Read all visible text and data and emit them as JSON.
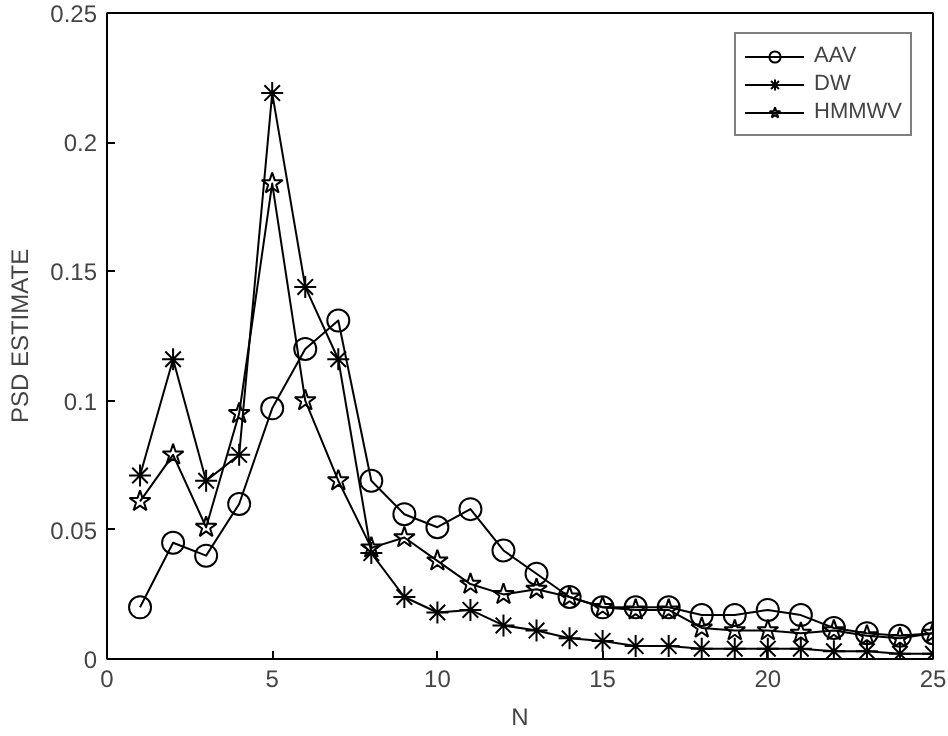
{
  "chart_data": {
    "type": "line",
    "xlabel": "N",
    "ylabel": "PSD ESTIMATE",
    "x": [
      1,
      2,
      3,
      4,
      5,
      6,
      7,
      8,
      9,
      10,
      11,
      12,
      13,
      14,
      15,
      16,
      17,
      18,
      19,
      20,
      21,
      22,
      23,
      24,
      25
    ],
    "series": [
      {
        "name": "AAV",
        "color": "#000000",
        "marker": "circle",
        "values": [
          0.02,
          0.045,
          0.04,
          0.06,
          0.097,
          0.12,
          0.131,
          0.069,
          0.056,
          0.051,
          0.058,
          0.042,
          0.033,
          0.024,
          0.02,
          0.02,
          0.02,
          0.017,
          0.017,
          0.019,
          0.017,
          0.012,
          0.01,
          0.009,
          0.01
        ]
      },
      {
        "name": "DW",
        "color": "#000000",
        "marker": "cross",
        "values": [
          0.071,
          0.116,
          0.069,
          0.079,
          0.219,
          0.144,
          0.116,
          0.041,
          0.024,
          0.018,
          0.019,
          0.013,
          0.011,
          0.008,
          0.007,
          0.005,
          0.005,
          0.004,
          0.004,
          0.004,
          0.004,
          0.003,
          0.003,
          0.002,
          0.002
        ]
      },
      {
        "name": "HMMWV",
        "color": "#000000",
        "marker": "star",
        "values": [
          0.061,
          0.079,
          0.051,
          0.095,
          0.184,
          0.1,
          0.069,
          0.043,
          0.047,
          0.038,
          0.029,
          0.025,
          0.027,
          0.024,
          0.02,
          0.019,
          0.019,
          0.012,
          0.011,
          0.011,
          0.01,
          0.011,
          0.009,
          0.008,
          0.01
        ]
      }
    ],
    "xlim": [
      0,
      25
    ],
    "ylim": [
      0,
      0.25
    ],
    "xticks": [
      0,
      5,
      10,
      15,
      20,
      25
    ],
    "yticks": [
      0,
      0.05,
      0.1,
      0.15,
      0.2,
      0.25
    ],
    "grid": false,
    "legend": "top right",
    "line_style": "solid"
  }
}
